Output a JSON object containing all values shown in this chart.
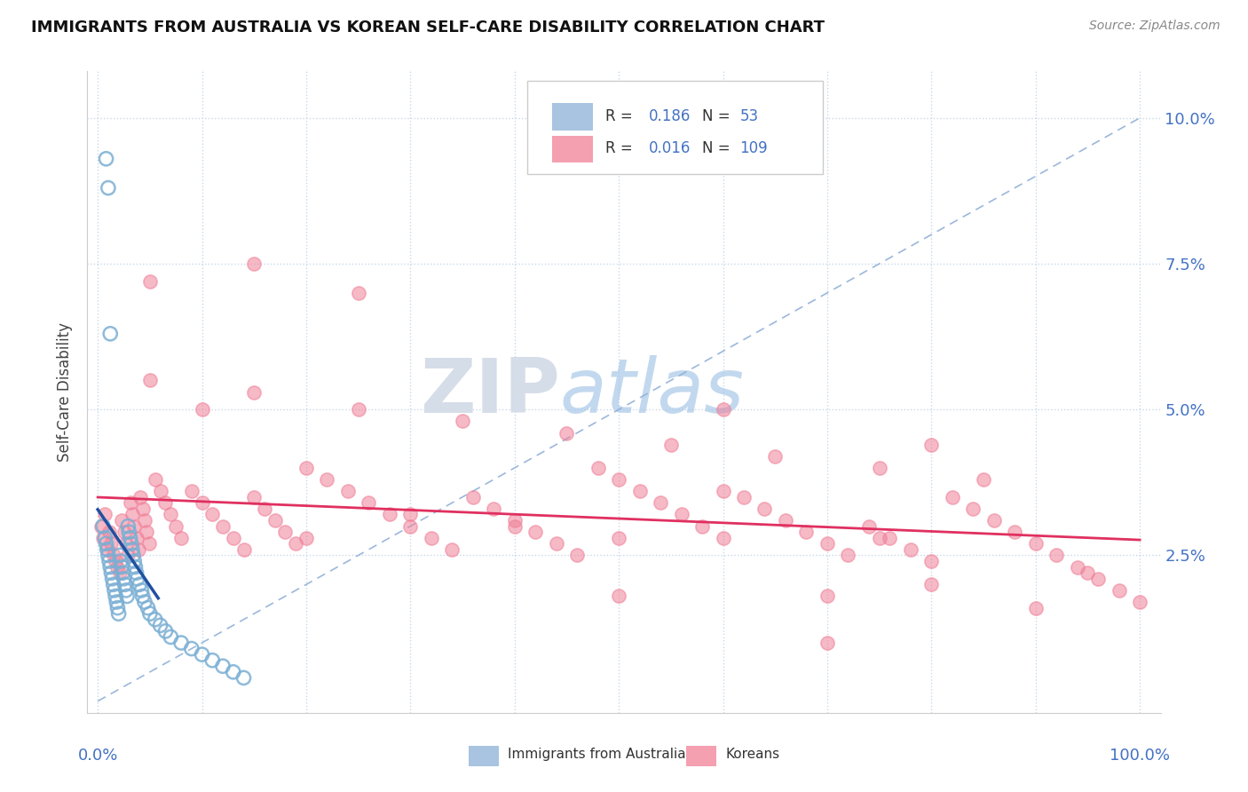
{
  "title": "IMMIGRANTS FROM AUSTRALIA VS KOREAN SELF-CARE DISABILITY CORRELATION CHART",
  "source": "Source: ZipAtlas.com",
  "ylabel": "Self-Care Disability",
  "ytick_vals": [
    0.025,
    0.05,
    0.075,
    0.1
  ],
  "ytick_labels": [
    "2.5%",
    "5.0%",
    "7.5%",
    "10.0%"
  ],
  "xlim": [
    0.0,
    1.0
  ],
  "ylim": [
    0.0,
    0.105
  ],
  "australia_color": "#7bafd4",
  "korean_color": "#f08098",
  "australia_trend_color": "#2050a0",
  "korean_trend_color": "#e03060",
  "diagonal_color": "#90b0d8",
  "watermark_zip": "ZIP",
  "watermark_atlas": "atlas",
  "legend_box_color": "#a8c4e0",
  "legend_box_color2": "#f4a0b0",
  "aus_x": [
    0.005,
    0.007,
    0.008,
    0.009,
    0.01,
    0.011,
    0.012,
    0.013,
    0.014,
    0.015,
    0.016,
    0.017,
    0.018,
    0.019,
    0.02,
    0.021,
    0.022,
    0.023,
    0.024,
    0.025,
    0.026,
    0.027,
    0.028,
    0.029,
    0.03,
    0.031,
    0.032,
    0.033,
    0.034,
    0.035,
    0.036,
    0.037,
    0.038,
    0.04,
    0.042,
    0.043,
    0.045,
    0.048,
    0.05,
    0.055,
    0.06,
    0.065,
    0.07,
    0.08,
    0.09,
    0.1,
    0.11,
    0.12,
    0.13,
    0.14,
    0.008,
    0.01,
    0.012
  ],
  "aus_y": [
    0.03,
    0.028,
    0.027,
    0.026,
    0.025,
    0.024,
    0.023,
    0.022,
    0.021,
    0.02,
    0.019,
    0.018,
    0.017,
    0.016,
    0.015,
    0.025,
    0.024,
    0.023,
    0.022,
    0.021,
    0.02,
    0.019,
    0.018,
    0.03,
    0.029,
    0.028,
    0.027,
    0.026,
    0.025,
    0.024,
    0.023,
    0.022,
    0.021,
    0.02,
    0.019,
    0.018,
    0.017,
    0.016,
    0.015,
    0.014,
    0.013,
    0.012,
    0.011,
    0.01,
    0.009,
    0.008,
    0.007,
    0.006,
    0.005,
    0.004,
    0.093,
    0.088,
    0.063
  ],
  "kor_x": [
    0.003,
    0.005,
    0.007,
    0.009,
    0.011,
    0.013,
    0.015,
    0.017,
    0.019,
    0.021,
    0.023,
    0.025,
    0.027,
    0.029,
    0.031,
    0.033,
    0.035,
    0.037,
    0.039,
    0.041,
    0.043,
    0.045,
    0.047,
    0.049,
    0.055,
    0.06,
    0.065,
    0.07,
    0.075,
    0.08,
    0.09,
    0.1,
    0.11,
    0.12,
    0.13,
    0.14,
    0.15,
    0.16,
    0.17,
    0.18,
    0.19,
    0.2,
    0.22,
    0.24,
    0.26,
    0.28,
    0.3,
    0.32,
    0.34,
    0.36,
    0.38,
    0.4,
    0.42,
    0.44,
    0.46,
    0.48,
    0.5,
    0.52,
    0.54,
    0.56,
    0.58,
    0.6,
    0.62,
    0.64,
    0.66,
    0.68,
    0.7,
    0.72,
    0.74,
    0.76,
    0.78,
    0.8,
    0.82,
    0.84,
    0.86,
    0.88,
    0.9,
    0.92,
    0.94,
    0.96,
    0.98,
    1.0,
    0.25,
    0.35,
    0.45,
    0.55,
    0.65,
    0.75,
    0.85,
    0.95,
    0.05,
    0.15,
    0.3,
    0.5,
    0.7,
    0.9,
    0.1,
    0.4,
    0.6,
    0.8,
    0.2,
    0.6,
    0.8,
    0.5,
    0.15,
    0.25,
    0.75,
    0.05,
    0.7
  ],
  "kor_y": [
    0.03,
    0.028,
    0.032,
    0.026,
    0.029,
    0.027,
    0.025,
    0.024,
    0.023,
    0.022,
    0.031,
    0.029,
    0.027,
    0.025,
    0.034,
    0.032,
    0.03,
    0.028,
    0.026,
    0.035,
    0.033,
    0.031,
    0.029,
    0.027,
    0.038,
    0.036,
    0.034,
    0.032,
    0.03,
    0.028,
    0.036,
    0.034,
    0.032,
    0.03,
    0.028,
    0.026,
    0.035,
    0.033,
    0.031,
    0.029,
    0.027,
    0.04,
    0.038,
    0.036,
    0.034,
    0.032,
    0.03,
    0.028,
    0.026,
    0.035,
    0.033,
    0.031,
    0.029,
    0.027,
    0.025,
    0.04,
    0.038,
    0.036,
    0.034,
    0.032,
    0.03,
    0.028,
    0.035,
    0.033,
    0.031,
    0.029,
    0.027,
    0.025,
    0.03,
    0.028,
    0.026,
    0.024,
    0.035,
    0.033,
    0.031,
    0.029,
    0.027,
    0.025,
    0.023,
    0.021,
    0.019,
    0.017,
    0.05,
    0.048,
    0.046,
    0.044,
    0.042,
    0.04,
    0.038,
    0.022,
    0.055,
    0.053,
    0.032,
    0.018,
    0.018,
    0.016,
    0.05,
    0.03,
    0.05,
    0.044,
    0.028,
    0.036,
    0.02,
    0.028,
    0.075,
    0.07,
    0.028,
    0.072,
    0.01
  ]
}
